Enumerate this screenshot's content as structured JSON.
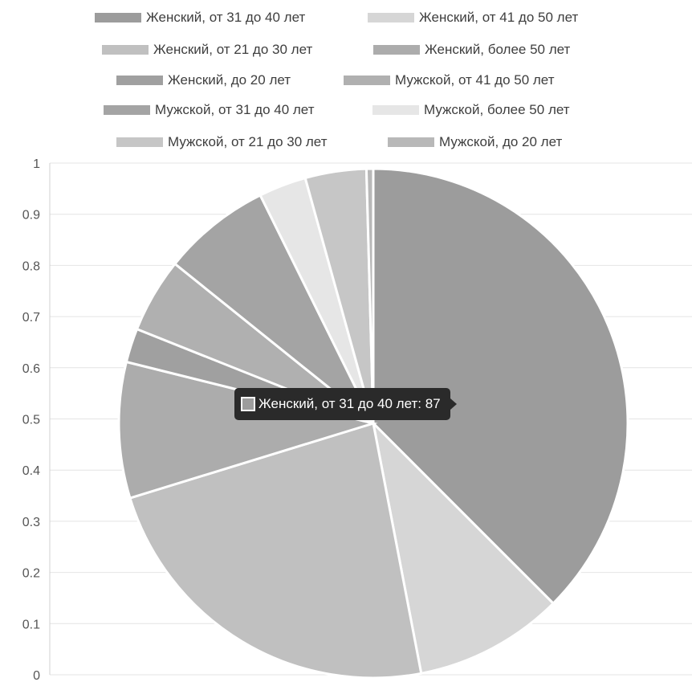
{
  "chart_data": {
    "type": "pie",
    "legend_position": "top",
    "grid": true,
    "ylim": [
      0,
      1
    ],
    "y_ticks": [
      "0",
      "0.1",
      "0.2",
      "0.3",
      "0.4",
      "0.5",
      "0.6",
      "0.7",
      "0.8",
      "0.9",
      "1"
    ],
    "slices": [
      {
        "label": "Женский, от 31 до 40 лет",
        "value": 87,
        "color": "#9c9c9c"
      },
      {
        "label": "Женский, от 41 до 50 лет",
        "value": 22,
        "color": "#d6d6d6"
      },
      {
        "label": "Женский, от 21 до 30 лет",
        "value": 54,
        "color": "#c0c0c0"
      },
      {
        "label": "Женский, более 50 лет",
        "value": 20,
        "color": "#acacac"
      },
      {
        "label": "Женский, до 20 лет",
        "value": 5,
        "color": "#a0a0a0"
      },
      {
        "label": "Мужской, от 41 до 50 лет",
        "value": 11,
        "color": "#b0b0b0"
      },
      {
        "label": "Мужской, от 31 до 40 лет",
        "value": 16,
        "color": "#a4a4a4"
      },
      {
        "label": "Мужской, более 50 лет",
        "value": 7,
        "color": "#e6e6e6"
      },
      {
        "label": "Мужской, от 21 до 30 лет",
        "value": 9,
        "color": "#c6c6c6"
      },
      {
        "label": "Мужской, до 20 лет",
        "value": 1,
        "color": "#b8b8b8"
      }
    ],
    "legend_labels": [
      "Женский, от 31 до 40 лет",
      "Женский, от 41 до 50 лет",
      "Женский, от 21 до 30 лет",
      "Женский, более 50 лет",
      "Женский, до 20 лет",
      "Мужской, от 41 до 50 лет",
      "Мужской, от 31 до 40 лет",
      "Мужской, более 50 лет",
      "Мужской, от 21 до 30 лет",
      "Мужской, до 20 лет"
    ]
  },
  "tooltip": {
    "text": "Женский, от 31 до 40 лет: 87",
    "swatch_color": "#9c9c9c"
  }
}
